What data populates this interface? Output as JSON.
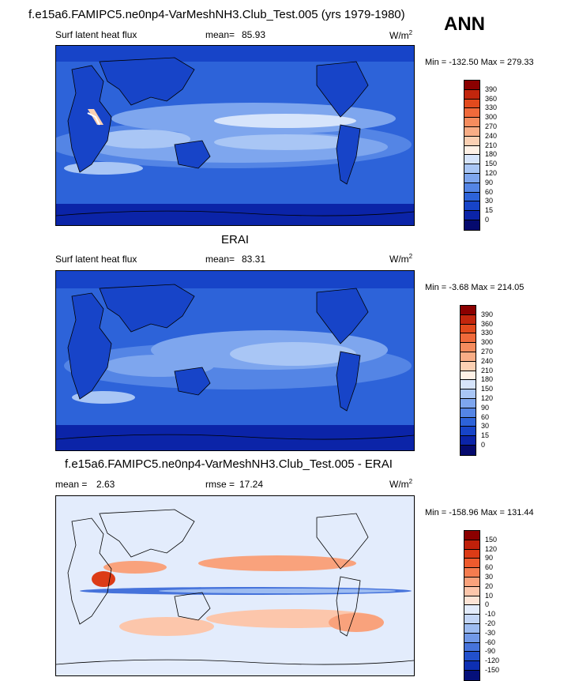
{
  "header": {
    "case_title": "f.e15a6.FAMIPC5.ne0np4-VarMeshNH3.Club_Test.005 (yrs 1979-1980)",
    "season": "ANN"
  },
  "panels": [
    {
      "title": "",
      "left_label": "Surf latent heat flux",
      "stat_label": "mean=",
      "stat_value": "85.93",
      "unit": "W/m",
      "unit_exp": "2",
      "min_label": "Min =",
      "min_value": "-132.50",
      "max_label": "Max =",
      "max_value": "279.33",
      "levels": [
        "390",
        "360",
        "330",
        "300",
        "270",
        "240",
        "210",
        "180",
        "150",
        "120",
        "90",
        "60",
        "30",
        "15",
        "0"
      ],
      "colors": [
        "#8b0000",
        "#c2260d",
        "#e24a1d",
        "#f06a3b",
        "#f58c5e",
        "#f8ad86",
        "#fbd0b3",
        "#fff1e6",
        "#d6e4fb",
        "#a9c6f5",
        "#7ea6ee",
        "#5485e5",
        "#2d63d9",
        "#1744c8",
        "#0b24a8",
        "#050a6e"
      ],
      "palette_name": "sequential"
    },
    {
      "title": "ERAI",
      "left_label": "Surf latent heat flux",
      "stat_label": "mean=",
      "stat_value": "83.31",
      "unit": "W/m",
      "unit_exp": "2",
      "min_label": "Min =",
      "min_value": "-3.68",
      "max_label": "Max =",
      "max_value": "214.05",
      "levels": [
        "390",
        "360",
        "330",
        "300",
        "270",
        "240",
        "210",
        "180",
        "150",
        "120",
        "90",
        "60",
        "30",
        "15",
        "0"
      ],
      "colors": [
        "#8b0000",
        "#c2260d",
        "#e24a1d",
        "#f06a3b",
        "#f58c5e",
        "#f8ad86",
        "#fbd0b3",
        "#fff1e6",
        "#d6e4fb",
        "#a9c6f5",
        "#7ea6ee",
        "#5485e5",
        "#2d63d9",
        "#1744c8",
        "#0b24a8",
        "#050a6e"
      ],
      "palette_name": "sequential"
    },
    {
      "title": "f.e15a6.FAMIPC5.ne0np4-VarMeshNH3.Club_Test.005 - ERAI",
      "left_label": "mean =",
      "left_value": "2.63",
      "stat_label": "rmse =",
      "stat_value": "17.24",
      "unit": "W/m",
      "unit_exp": "2",
      "min_label": "Min =",
      "min_value": "-158.96",
      "max_label": "Max =",
      "max_value": "131.44",
      "levels": [
        "150",
        "120",
        "90",
        "60",
        "30",
        "20",
        "10",
        "0",
        "-10",
        "-20",
        "-30",
        "-60",
        "-90",
        "-120",
        "-150"
      ],
      "colors": [
        "#8b0000",
        "#c0200a",
        "#dc3b16",
        "#ee5a2d",
        "#f57c4f",
        "#f9a27c",
        "#fcc6ab",
        "#fde4d6",
        "#e3ecfc",
        "#c3d6f7",
        "#9dbcf1",
        "#7199e8",
        "#4673db",
        "#2250cc",
        "#0d2fb3",
        "#05107a"
      ],
      "palette_name": "diverging"
    }
  ]
}
